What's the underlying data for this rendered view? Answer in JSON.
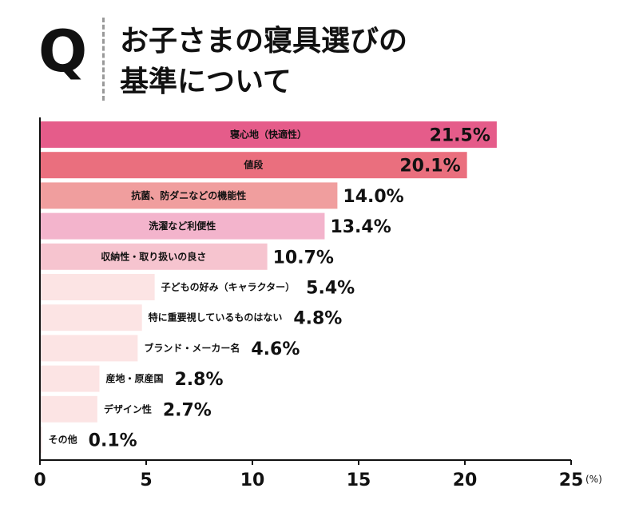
{
  "header": {
    "q_mark": "Q",
    "title_line1": "お子さまの寝具選びの",
    "title_line2": "基準について"
  },
  "chart_data": {
    "type": "bar",
    "orientation": "horizontal",
    "categories": [
      "寝心地（快適性）",
      "値段",
      "抗菌、防ダニなどの機能性",
      "洗濯など利便性",
      "収納性・取り扱いの良さ",
      "子どもの好み（キャラクター）",
      "特に重要視しているものはない",
      "ブランド・メーカー名",
      "産地・原産国",
      "デザイン性",
      "その他"
    ],
    "values": [
      21.5,
      20.1,
      14.0,
      13.4,
      10.7,
      5.4,
      4.8,
      4.6,
      2.8,
      2.7,
      0.1
    ],
    "value_labels": [
      "21.5%",
      "20.1%",
      "14.0%",
      "13.4%",
      "10.7%",
      "5.4%",
      "4.8%",
      "4.6%",
      "2.8%",
      "2.7%",
      "0.1%"
    ],
    "colors": [
      "#e55c8a",
      "#ea6f7e",
      "#f09e9e",
      "#f3b4cc",
      "#f6c4cf",
      "#fce4e4",
      "#fce4e4",
      "#fce4e4",
      "#fce4e4",
      "#fce4e4",
      "#fce4e4"
    ],
    "xlim": [
      0,
      25
    ],
    "x_ticks": [
      "0",
      "5",
      "10",
      "15",
      "20",
      "25"
    ],
    "unit": "(%)",
    "grid": false,
    "legend": "none"
  }
}
